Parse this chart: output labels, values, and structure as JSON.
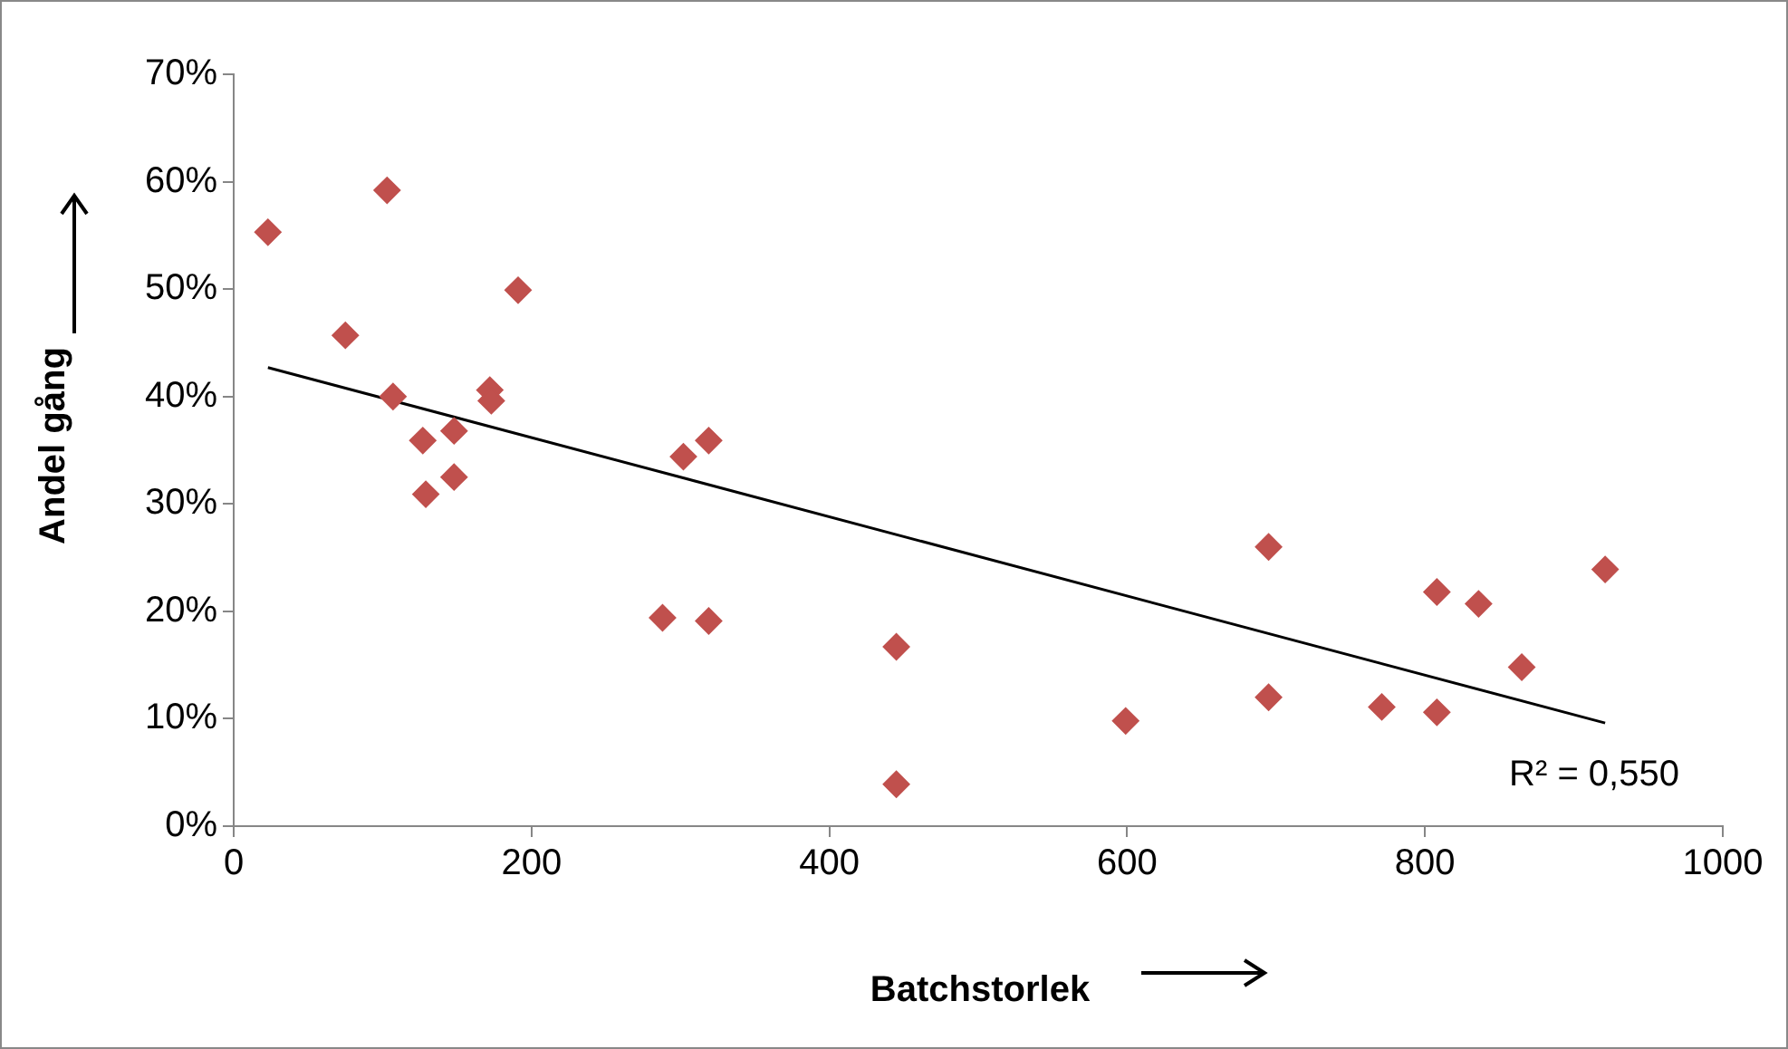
{
  "chart_data": {
    "type": "scatter",
    "xlabel": "Batchstorlek",
    "ylabel": "Andel gång",
    "xlim": [
      0,
      1000
    ],
    "xticks": [
      0,
      200,
      400,
      600,
      800,
      1000
    ],
    "ylim": [
      0,
      70
    ],
    "yticks": [
      {
        "value": 0,
        "label": "0%"
      },
      {
        "value": 10,
        "label": "10%"
      },
      {
        "value": 20,
        "label": "20%"
      },
      {
        "value": 30,
        "label": "30%"
      },
      {
        "value": 40,
        "label": "40%"
      },
      {
        "value": 50,
        "label": "50%"
      },
      {
        "value": 60,
        "label": "60%"
      },
      {
        "value": 70,
        "label": "70%"
      }
    ],
    "grid": false,
    "legend": false,
    "marker": "diamond",
    "series": [
      {
        "type": "scatter",
        "color": "#c0504d",
        "x": [
          23,
          103,
          75,
          107,
          191,
          172,
          173,
          127,
          148,
          129,
          148,
          319,
          302,
          288,
          319,
          445,
          445,
          599,
          695,
          695,
          771,
          808,
          808,
          836,
          865,
          921
        ],
        "values": [
          55.3,
          59.2,
          45.7,
          40.0,
          49.9,
          40.6,
          39.6,
          35.9,
          36.8,
          30.9,
          32.5,
          35.9,
          34.4,
          19.4,
          19.1,
          16.7,
          3.9,
          9.8,
          26.0,
          12.0,
          11.1,
          21.8,
          10.6,
          20.7,
          14.8,
          23.9
        ]
      },
      {
        "type": "line",
        "color": "#000000",
        "marker": "none",
        "line_style": "solid",
        "x": [
          23,
          921
        ],
        "values": [
          42.7,
          9.6
        ]
      }
    ],
    "annotations": [
      "R² = 0,550"
    ]
  }
}
